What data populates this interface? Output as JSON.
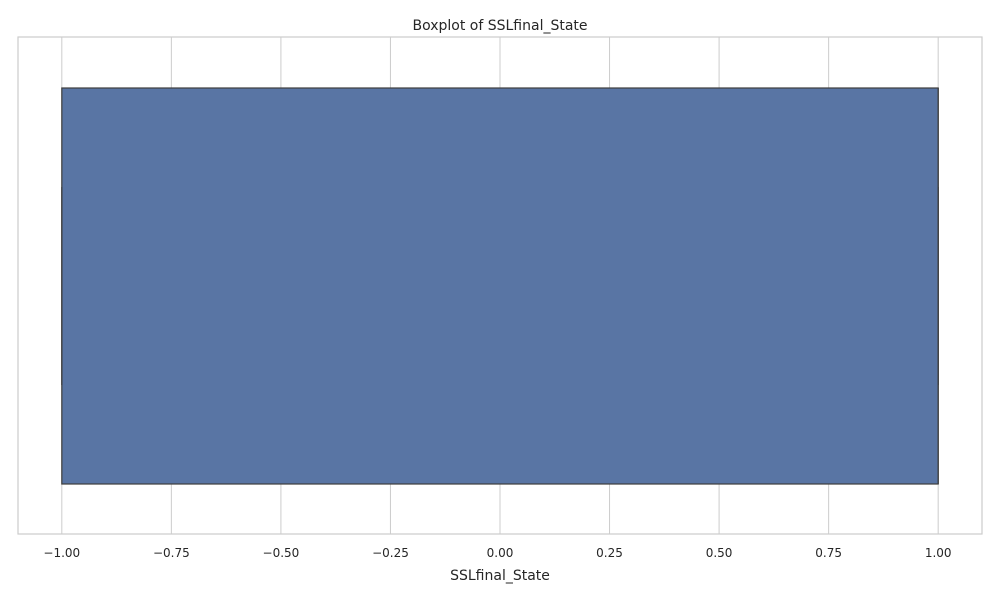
{
  "chart_data": {
    "type": "boxplot",
    "orientation": "horizontal",
    "title": "Boxplot of SSLfinal_State",
    "xlabel": "SSLfinal_State",
    "ylabel": "",
    "xlim": [
      -1.1,
      1.1
    ],
    "x_ticks": [
      -1.0,
      -0.75,
      -0.5,
      -0.25,
      0.0,
      0.25,
      0.5,
      0.75,
      1.0
    ],
    "x_tick_labels": [
      "−1.00",
      "−0.75",
      "−0.50",
      "−0.25",
      "0.00",
      "0.25",
      "0.50",
      "0.75",
      "1.00"
    ],
    "grid": true,
    "series": [
      {
        "min": -1.0,
        "q1": -1.0,
        "median": 1.0,
        "q3": 1.0,
        "max": 1.0,
        "color": "#5975a4",
        "edge_color": "#3d3d3d"
      }
    ]
  }
}
